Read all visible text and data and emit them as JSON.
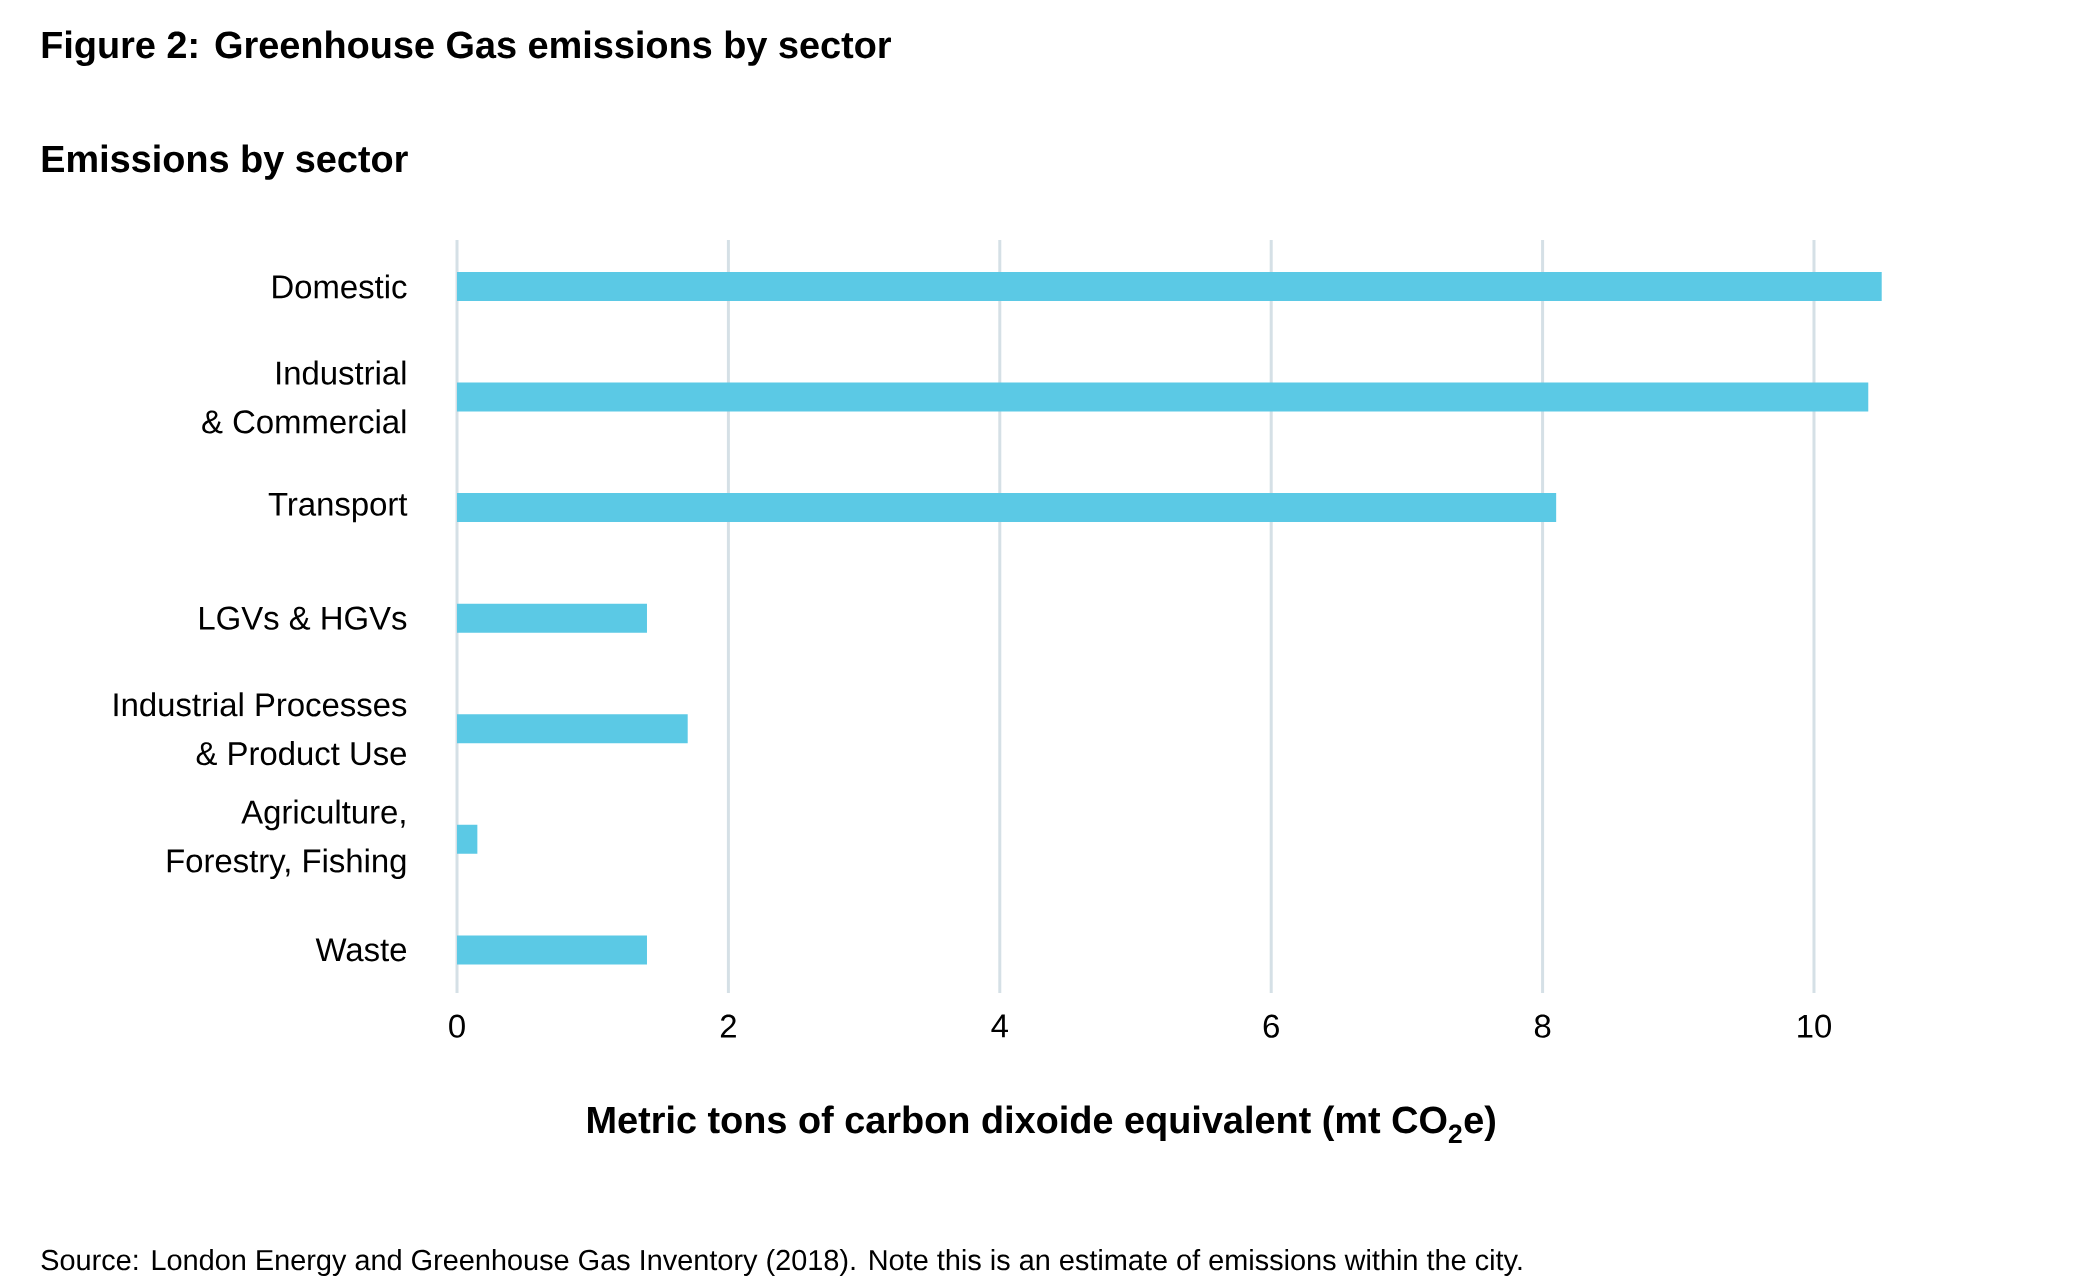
{
  "chart_data": {
    "type": "bar",
    "orientation": "horizontal",
    "title": "Figure 2: Greenhouse Gas emissions by sector",
    "subtitle": "Emissions by sector",
    "xlabel": "Metric tons of carbon dixoide equivalent (mt CO$_{2}$e)",
    "categories": [
      "Domestic",
      "Industrial\n& Commercial",
      "Transport",
      "LGVs & HGVs",
      "Industrial Processes\n& Product Use",
      "Agriculture,\nForestry, Fishing",
      "Waste"
    ],
    "values": [
      10.5,
      10.4,
      8.1,
      1.4,
      1.7,
      0.15,
      1.4
    ],
    "color": "#5bc9e5",
    "xlim": [
      0,
      10.5
    ],
    "xticks": [
      0,
      2,
      4,
      6,
      8,
      10
    ],
    "grid": "x",
    "annotations": [
      "Source: London Energy and Greenhouse Gas Inventory (2018). Note this is an estimate of emissions within the city."
    ]
  }
}
